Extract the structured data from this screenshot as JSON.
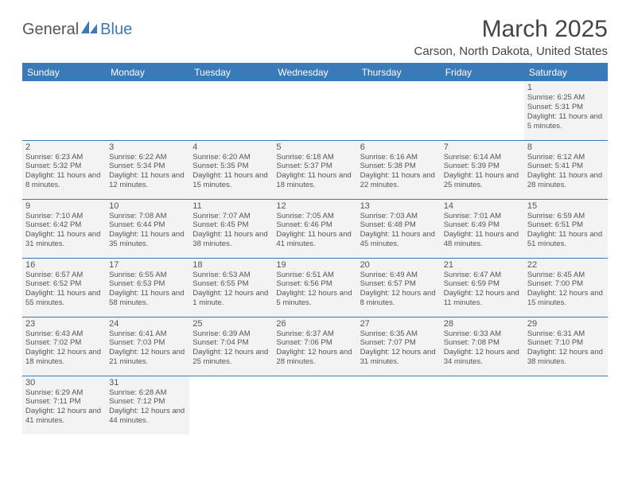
{
  "logo": {
    "general": "General",
    "blue": "Blue"
  },
  "title": "March 2025",
  "location": "Carson, North Dakota, United States",
  "colors": {
    "accent": "#3a7ab8",
    "cell_bg": "#f3f3f3",
    "text": "#555555"
  },
  "weekdays": [
    "Sunday",
    "Monday",
    "Tuesday",
    "Wednesday",
    "Thursday",
    "Friday",
    "Saturday"
  ],
  "weeks": [
    [
      null,
      null,
      null,
      null,
      null,
      null,
      {
        "d": "1",
        "sr": "Sunrise: 6:25 AM",
        "ss": "Sunset: 5:31 PM",
        "dl": "Daylight: 11 hours and 5 minutes."
      }
    ],
    [
      {
        "d": "2",
        "sr": "Sunrise: 6:23 AM",
        "ss": "Sunset: 5:32 PM",
        "dl": "Daylight: 11 hours and 8 minutes."
      },
      {
        "d": "3",
        "sr": "Sunrise: 6:22 AM",
        "ss": "Sunset: 5:34 PM",
        "dl": "Daylight: 11 hours and 12 minutes."
      },
      {
        "d": "4",
        "sr": "Sunrise: 6:20 AM",
        "ss": "Sunset: 5:35 PM",
        "dl": "Daylight: 11 hours and 15 minutes."
      },
      {
        "d": "5",
        "sr": "Sunrise: 6:18 AM",
        "ss": "Sunset: 5:37 PM",
        "dl": "Daylight: 11 hours and 18 minutes."
      },
      {
        "d": "6",
        "sr": "Sunrise: 6:16 AM",
        "ss": "Sunset: 5:38 PM",
        "dl": "Daylight: 11 hours and 22 minutes."
      },
      {
        "d": "7",
        "sr": "Sunrise: 6:14 AM",
        "ss": "Sunset: 5:39 PM",
        "dl": "Daylight: 11 hours and 25 minutes."
      },
      {
        "d": "8",
        "sr": "Sunrise: 6:12 AM",
        "ss": "Sunset: 5:41 PM",
        "dl": "Daylight: 11 hours and 28 minutes."
      }
    ],
    [
      {
        "d": "9",
        "sr": "Sunrise: 7:10 AM",
        "ss": "Sunset: 6:42 PM",
        "dl": "Daylight: 11 hours and 31 minutes."
      },
      {
        "d": "10",
        "sr": "Sunrise: 7:08 AM",
        "ss": "Sunset: 6:44 PM",
        "dl": "Daylight: 11 hours and 35 minutes."
      },
      {
        "d": "11",
        "sr": "Sunrise: 7:07 AM",
        "ss": "Sunset: 6:45 PM",
        "dl": "Daylight: 11 hours and 38 minutes."
      },
      {
        "d": "12",
        "sr": "Sunrise: 7:05 AM",
        "ss": "Sunset: 6:46 PM",
        "dl": "Daylight: 11 hours and 41 minutes."
      },
      {
        "d": "13",
        "sr": "Sunrise: 7:03 AM",
        "ss": "Sunset: 6:48 PM",
        "dl": "Daylight: 11 hours and 45 minutes."
      },
      {
        "d": "14",
        "sr": "Sunrise: 7:01 AM",
        "ss": "Sunset: 6:49 PM",
        "dl": "Daylight: 11 hours and 48 minutes."
      },
      {
        "d": "15",
        "sr": "Sunrise: 6:59 AM",
        "ss": "Sunset: 6:51 PM",
        "dl": "Daylight: 11 hours and 51 minutes."
      }
    ],
    [
      {
        "d": "16",
        "sr": "Sunrise: 6:57 AM",
        "ss": "Sunset: 6:52 PM",
        "dl": "Daylight: 11 hours and 55 minutes."
      },
      {
        "d": "17",
        "sr": "Sunrise: 6:55 AM",
        "ss": "Sunset: 6:53 PM",
        "dl": "Daylight: 11 hours and 58 minutes."
      },
      {
        "d": "18",
        "sr": "Sunrise: 6:53 AM",
        "ss": "Sunset: 6:55 PM",
        "dl": "Daylight: 12 hours and 1 minute."
      },
      {
        "d": "19",
        "sr": "Sunrise: 6:51 AM",
        "ss": "Sunset: 6:56 PM",
        "dl": "Daylight: 12 hours and 5 minutes."
      },
      {
        "d": "20",
        "sr": "Sunrise: 6:49 AM",
        "ss": "Sunset: 6:57 PM",
        "dl": "Daylight: 12 hours and 8 minutes."
      },
      {
        "d": "21",
        "sr": "Sunrise: 6:47 AM",
        "ss": "Sunset: 6:59 PM",
        "dl": "Daylight: 12 hours and 11 minutes."
      },
      {
        "d": "22",
        "sr": "Sunrise: 6:45 AM",
        "ss": "Sunset: 7:00 PM",
        "dl": "Daylight: 12 hours and 15 minutes."
      }
    ],
    [
      {
        "d": "23",
        "sr": "Sunrise: 6:43 AM",
        "ss": "Sunset: 7:02 PM",
        "dl": "Daylight: 12 hours and 18 minutes."
      },
      {
        "d": "24",
        "sr": "Sunrise: 6:41 AM",
        "ss": "Sunset: 7:03 PM",
        "dl": "Daylight: 12 hours and 21 minutes."
      },
      {
        "d": "25",
        "sr": "Sunrise: 6:39 AM",
        "ss": "Sunset: 7:04 PM",
        "dl": "Daylight: 12 hours and 25 minutes."
      },
      {
        "d": "26",
        "sr": "Sunrise: 6:37 AM",
        "ss": "Sunset: 7:06 PM",
        "dl": "Daylight: 12 hours and 28 minutes."
      },
      {
        "d": "27",
        "sr": "Sunrise: 6:35 AM",
        "ss": "Sunset: 7:07 PM",
        "dl": "Daylight: 12 hours and 31 minutes."
      },
      {
        "d": "28",
        "sr": "Sunrise: 6:33 AM",
        "ss": "Sunset: 7:08 PM",
        "dl": "Daylight: 12 hours and 34 minutes."
      },
      {
        "d": "29",
        "sr": "Sunrise: 6:31 AM",
        "ss": "Sunset: 7:10 PM",
        "dl": "Daylight: 12 hours and 38 minutes."
      }
    ],
    [
      {
        "d": "30",
        "sr": "Sunrise: 6:29 AM",
        "ss": "Sunset: 7:11 PM",
        "dl": "Daylight: 12 hours and 41 minutes."
      },
      {
        "d": "31",
        "sr": "Sunrise: 6:28 AM",
        "ss": "Sunset: 7:12 PM",
        "dl": "Daylight: 12 hours and 44 minutes."
      },
      null,
      null,
      null,
      null,
      null
    ]
  ]
}
